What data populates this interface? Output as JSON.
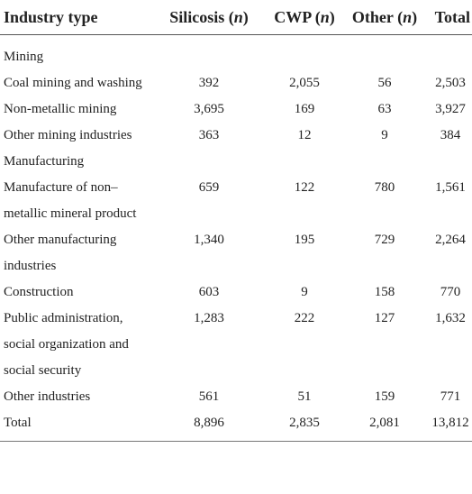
{
  "table": {
    "headers": {
      "industry": "Industry type",
      "silicosis": "Silicosis",
      "cwp": "CWP",
      "other": "Other",
      "n_symbol": "n",
      "total": "Total"
    },
    "rows": [
      {
        "type": "category",
        "label": "Mining"
      },
      {
        "type": "data",
        "label": "Coal mining and washing",
        "silicosis": "392",
        "cwp": "2,055",
        "other": "56",
        "total": "2,503"
      },
      {
        "type": "data",
        "label": "Non-metallic mining",
        "silicosis": "3,695",
        "cwp": "169",
        "other": "63",
        "total": "3,927"
      },
      {
        "type": "data",
        "label": "Other mining industries",
        "silicosis": "363",
        "cwp": "12",
        "other": "9",
        "total": "384"
      },
      {
        "type": "category",
        "label": "Manufacturing"
      },
      {
        "type": "data",
        "label": "Manufacture of non–metallic mineral product",
        "silicosis": "659",
        "cwp": "122",
        "other": "780",
        "total": "1,561"
      },
      {
        "type": "data",
        "label": "Other manufacturing industries",
        "silicosis": "1,340",
        "cwp": "195",
        "other": "729",
        "total": "2,264"
      },
      {
        "type": "data",
        "label": "Construction",
        "silicosis": "603",
        "cwp": "9",
        "other": "158",
        "total": "770"
      },
      {
        "type": "data",
        "label": "Public administration, social organization and social security",
        "silicosis": "1,283",
        "cwp": "222",
        "other": "127",
        "total": "1,632"
      },
      {
        "type": "data",
        "label": "Other industries",
        "silicosis": "561",
        "cwp": "51",
        "other": "159",
        "total": "771"
      },
      {
        "type": "total",
        "label": "Total",
        "silicosis": "8,896",
        "cwp": "2,835",
        "other": "2,081",
        "total": "13,812"
      }
    ]
  }
}
